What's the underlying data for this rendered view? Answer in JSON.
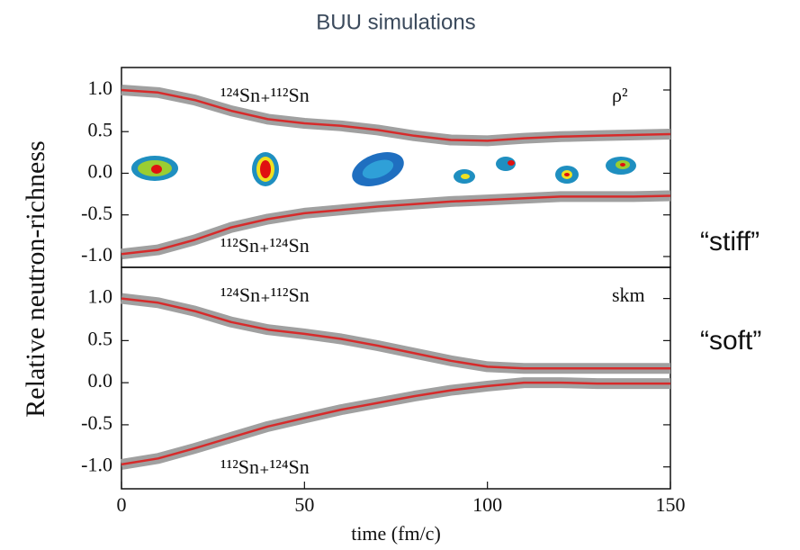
{
  "title": "BUU simulations",
  "y_label": "Relative neutron-richness",
  "chart_data": [
    {
      "type": "line",
      "annotation": "ρ²",
      "side_label": "“stiff”",
      "x": [
        0,
        10,
        20,
        30,
        40,
        50,
        60,
        70,
        80,
        90,
        100,
        110,
        120,
        130,
        140,
        150
      ],
      "xlim": [
        0,
        150
      ],
      "ylim": [
        -1.13,
        1.27
      ],
      "yticks": [
        {
          "value": 1,
          "label": "1.0"
        },
        {
          "value": 0.5,
          "label": "0.5"
        },
        {
          "value": 0,
          "label": "0.0"
        },
        {
          "value": -0.5,
          "label": "-0.5"
        },
        {
          "value": -1,
          "label": "-1.0"
        }
      ],
      "series": [
        {
          "name": "¹²⁴Sn₊¹¹²Sn",
          "color": "#d62b2b",
          "values": [
            1.0,
            0.97,
            0.88,
            0.75,
            0.65,
            0.6,
            0.57,
            0.52,
            0.45,
            0.4,
            0.39,
            0.42,
            0.44,
            0.45,
            0.46,
            0.47
          ]
        },
        {
          "name": "¹¹²Sn₊¹²⁴Sn",
          "color": "#d62b2b",
          "values": [
            -0.97,
            -0.92,
            -0.8,
            -0.65,
            -0.55,
            -0.48,
            -0.44,
            -0.4,
            -0.37,
            -0.34,
            -0.32,
            -0.3,
            -0.28,
            -0.28,
            -0.28,
            -0.27
          ]
        }
      ]
    },
    {
      "type": "line",
      "annotation": "skm",
      "side_label": "“soft”",
      "x": [
        0,
        10,
        20,
        30,
        40,
        50,
        60,
        70,
        80,
        90,
        100,
        110,
        120,
        130,
        140,
        150
      ],
      "xlim": [
        0,
        150
      ],
      "ylim": [
        -1.26,
        1.37
      ],
      "xticks": [
        0,
        50,
        100,
        150
      ],
      "x_label": "time (fm/c)",
      "yticks": [
        {
          "value": 1,
          "label": "1.0"
        },
        {
          "value": 0.5,
          "label": "0.5"
        },
        {
          "value": 0,
          "label": "0.0"
        },
        {
          "value": -0.5,
          "label": "-0.5"
        },
        {
          "value": -1,
          "label": "-1.0"
        }
      ],
      "series": [
        {
          "name": "¹²⁴Sn₊¹¹²Sn",
          "color": "#d62b2b",
          "values": [
            1.0,
            0.95,
            0.85,
            0.72,
            0.63,
            0.58,
            0.52,
            0.44,
            0.35,
            0.26,
            0.19,
            0.17,
            0.17,
            0.17,
            0.17,
            0.17
          ]
        },
        {
          "name": "¹¹²Sn₊¹²⁴Sn",
          "color": "#d62b2b",
          "values": [
            -0.97,
            -0.9,
            -0.78,
            -0.65,
            -0.52,
            -0.42,
            -0.32,
            -0.24,
            -0.16,
            -0.09,
            -0.04,
            0.0,
            0.0,
            -0.01,
            -0.01,
            -0.01
          ]
        }
      ]
    }
  ]
}
